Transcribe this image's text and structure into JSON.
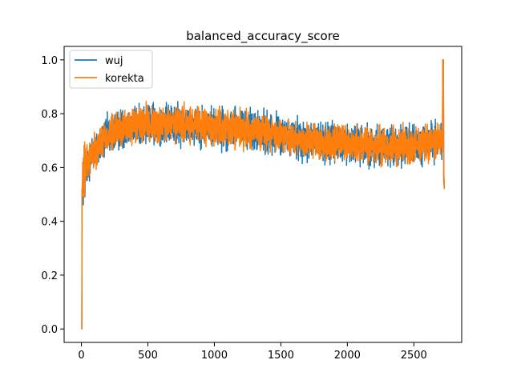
{
  "chart_data": {
    "type": "line",
    "title": "balanced_accuracy_score",
    "xlabel": "",
    "ylabel": "",
    "xlim": [
      -130,
      2860
    ],
    "ylim": [
      -0.05,
      1.05
    ],
    "xticks": [
      0,
      500,
      1000,
      1500,
      2000,
      2500
    ],
    "yticks": [
      0.0,
      0.2,
      0.4,
      0.6,
      0.8,
      1.0
    ],
    "xtick_labels": [
      "0",
      "500",
      "1000",
      "1500",
      "2000",
      "2500"
    ],
    "ytick_labels": [
      "0.0",
      "0.2",
      "0.4",
      "0.6",
      "0.8",
      "1.0"
    ],
    "grid": false,
    "legend_position": "upper-left",
    "n_points": 2730,
    "series": [
      {
        "name": "wuj",
        "color": "#1f77b4",
        "trend": [
          [
            0,
            0.0
          ],
          [
            3,
            0.0
          ],
          [
            5,
            0.5
          ],
          [
            20,
            0.57
          ],
          [
            50,
            0.62
          ],
          [
            100,
            0.66
          ],
          [
            200,
            0.72
          ],
          [
            300,
            0.745
          ],
          [
            400,
            0.755
          ],
          [
            500,
            0.76
          ],
          [
            700,
            0.76
          ],
          [
            900,
            0.755
          ],
          [
            1000,
            0.75
          ],
          [
            1200,
            0.745
          ],
          [
            1400,
            0.73
          ],
          [
            1600,
            0.71
          ],
          [
            1800,
            0.69
          ],
          [
            2000,
            0.69
          ],
          [
            2200,
            0.68
          ],
          [
            2400,
            0.68
          ],
          [
            2600,
            0.69
          ],
          [
            2715,
            0.7
          ],
          [
            2718,
            1.0
          ],
          [
            2722,
            1.0
          ],
          [
            2725,
            0.6
          ],
          [
            2730,
            0.5
          ]
        ],
        "noise_amplitude": 0.05
      },
      {
        "name": "korekta",
        "color": "#ff7f0e",
        "trend": [
          [
            0,
            0.0
          ],
          [
            3,
            0.0
          ],
          [
            5,
            0.5
          ],
          [
            20,
            0.58
          ],
          [
            50,
            0.63
          ],
          [
            100,
            0.67
          ],
          [
            200,
            0.72
          ],
          [
            300,
            0.745
          ],
          [
            400,
            0.755
          ],
          [
            500,
            0.76
          ],
          [
            700,
            0.76
          ],
          [
            900,
            0.755
          ],
          [
            1000,
            0.75
          ],
          [
            1200,
            0.745
          ],
          [
            1400,
            0.73
          ],
          [
            1600,
            0.71
          ],
          [
            1800,
            0.69
          ],
          [
            2000,
            0.69
          ],
          [
            2200,
            0.68
          ],
          [
            2400,
            0.68
          ],
          [
            2600,
            0.69
          ],
          [
            2715,
            0.7
          ],
          [
            2718,
            1.0
          ],
          [
            2722,
            1.0
          ],
          [
            2725,
            0.6
          ],
          [
            2730,
            0.5
          ]
        ],
        "noise_amplitude": 0.045
      }
    ]
  }
}
